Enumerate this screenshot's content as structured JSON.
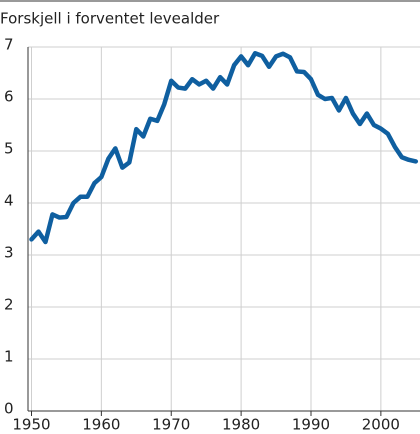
{
  "chart_data": {
    "type": "line",
    "title": "Forskjell i forventet levealder",
    "x": [
      1950,
      1951,
      1952,
      1953,
      1954,
      1955,
      1956,
      1957,
      1958,
      1959,
      1960,
      1961,
      1962,
      1963,
      1964,
      1965,
      1966,
      1967,
      1968,
      1969,
      1970,
      1971,
      1972,
      1973,
      1974,
      1975,
      1976,
      1977,
      1978,
      1979,
      1980,
      1981,
      1982,
      1983,
      1984,
      1985,
      1986,
      1987,
      1988,
      1989,
      1990,
      1991,
      1992,
      1993,
      1994,
      1995,
      1996,
      1997,
      1998,
      1999,
      2000,
      2001,
      2002,
      2003,
      2004,
      2005
    ],
    "series": [
      {
        "color": "#0f5fa0",
        "values": [
          3.3,
          3.45,
          3.25,
          3.78,
          3.72,
          3.73,
          4.0,
          4.12,
          4.12,
          4.38,
          4.5,
          4.85,
          5.05,
          4.68,
          4.78,
          5.42,
          5.28,
          5.62,
          5.58,
          5.9,
          6.35,
          6.22,
          6.2,
          6.38,
          6.28,
          6.35,
          6.2,
          6.42,
          6.28,
          6.65,
          6.82,
          6.65,
          6.88,
          6.83,
          6.62,
          6.82,
          6.87,
          6.8,
          6.53,
          6.52,
          6.38,
          6.08,
          6.0,
          6.02,
          5.78,
          6.02,
          5.72,
          5.52,
          5.72,
          5.5,
          5.43,
          5.33,
          5.08,
          4.88,
          4.83,
          4.8
        ]
      }
    ],
    "xlim": [
      1949.5,
      2005.6
    ],
    "xticks": [
      1950,
      1960,
      1970,
      1980,
      1990,
      2000
    ],
    "ylim": [
      0,
      7
    ],
    "yticks": [
      0,
      1,
      2,
      3,
      4,
      5,
      6,
      7
    ],
    "grid": true
  }
}
